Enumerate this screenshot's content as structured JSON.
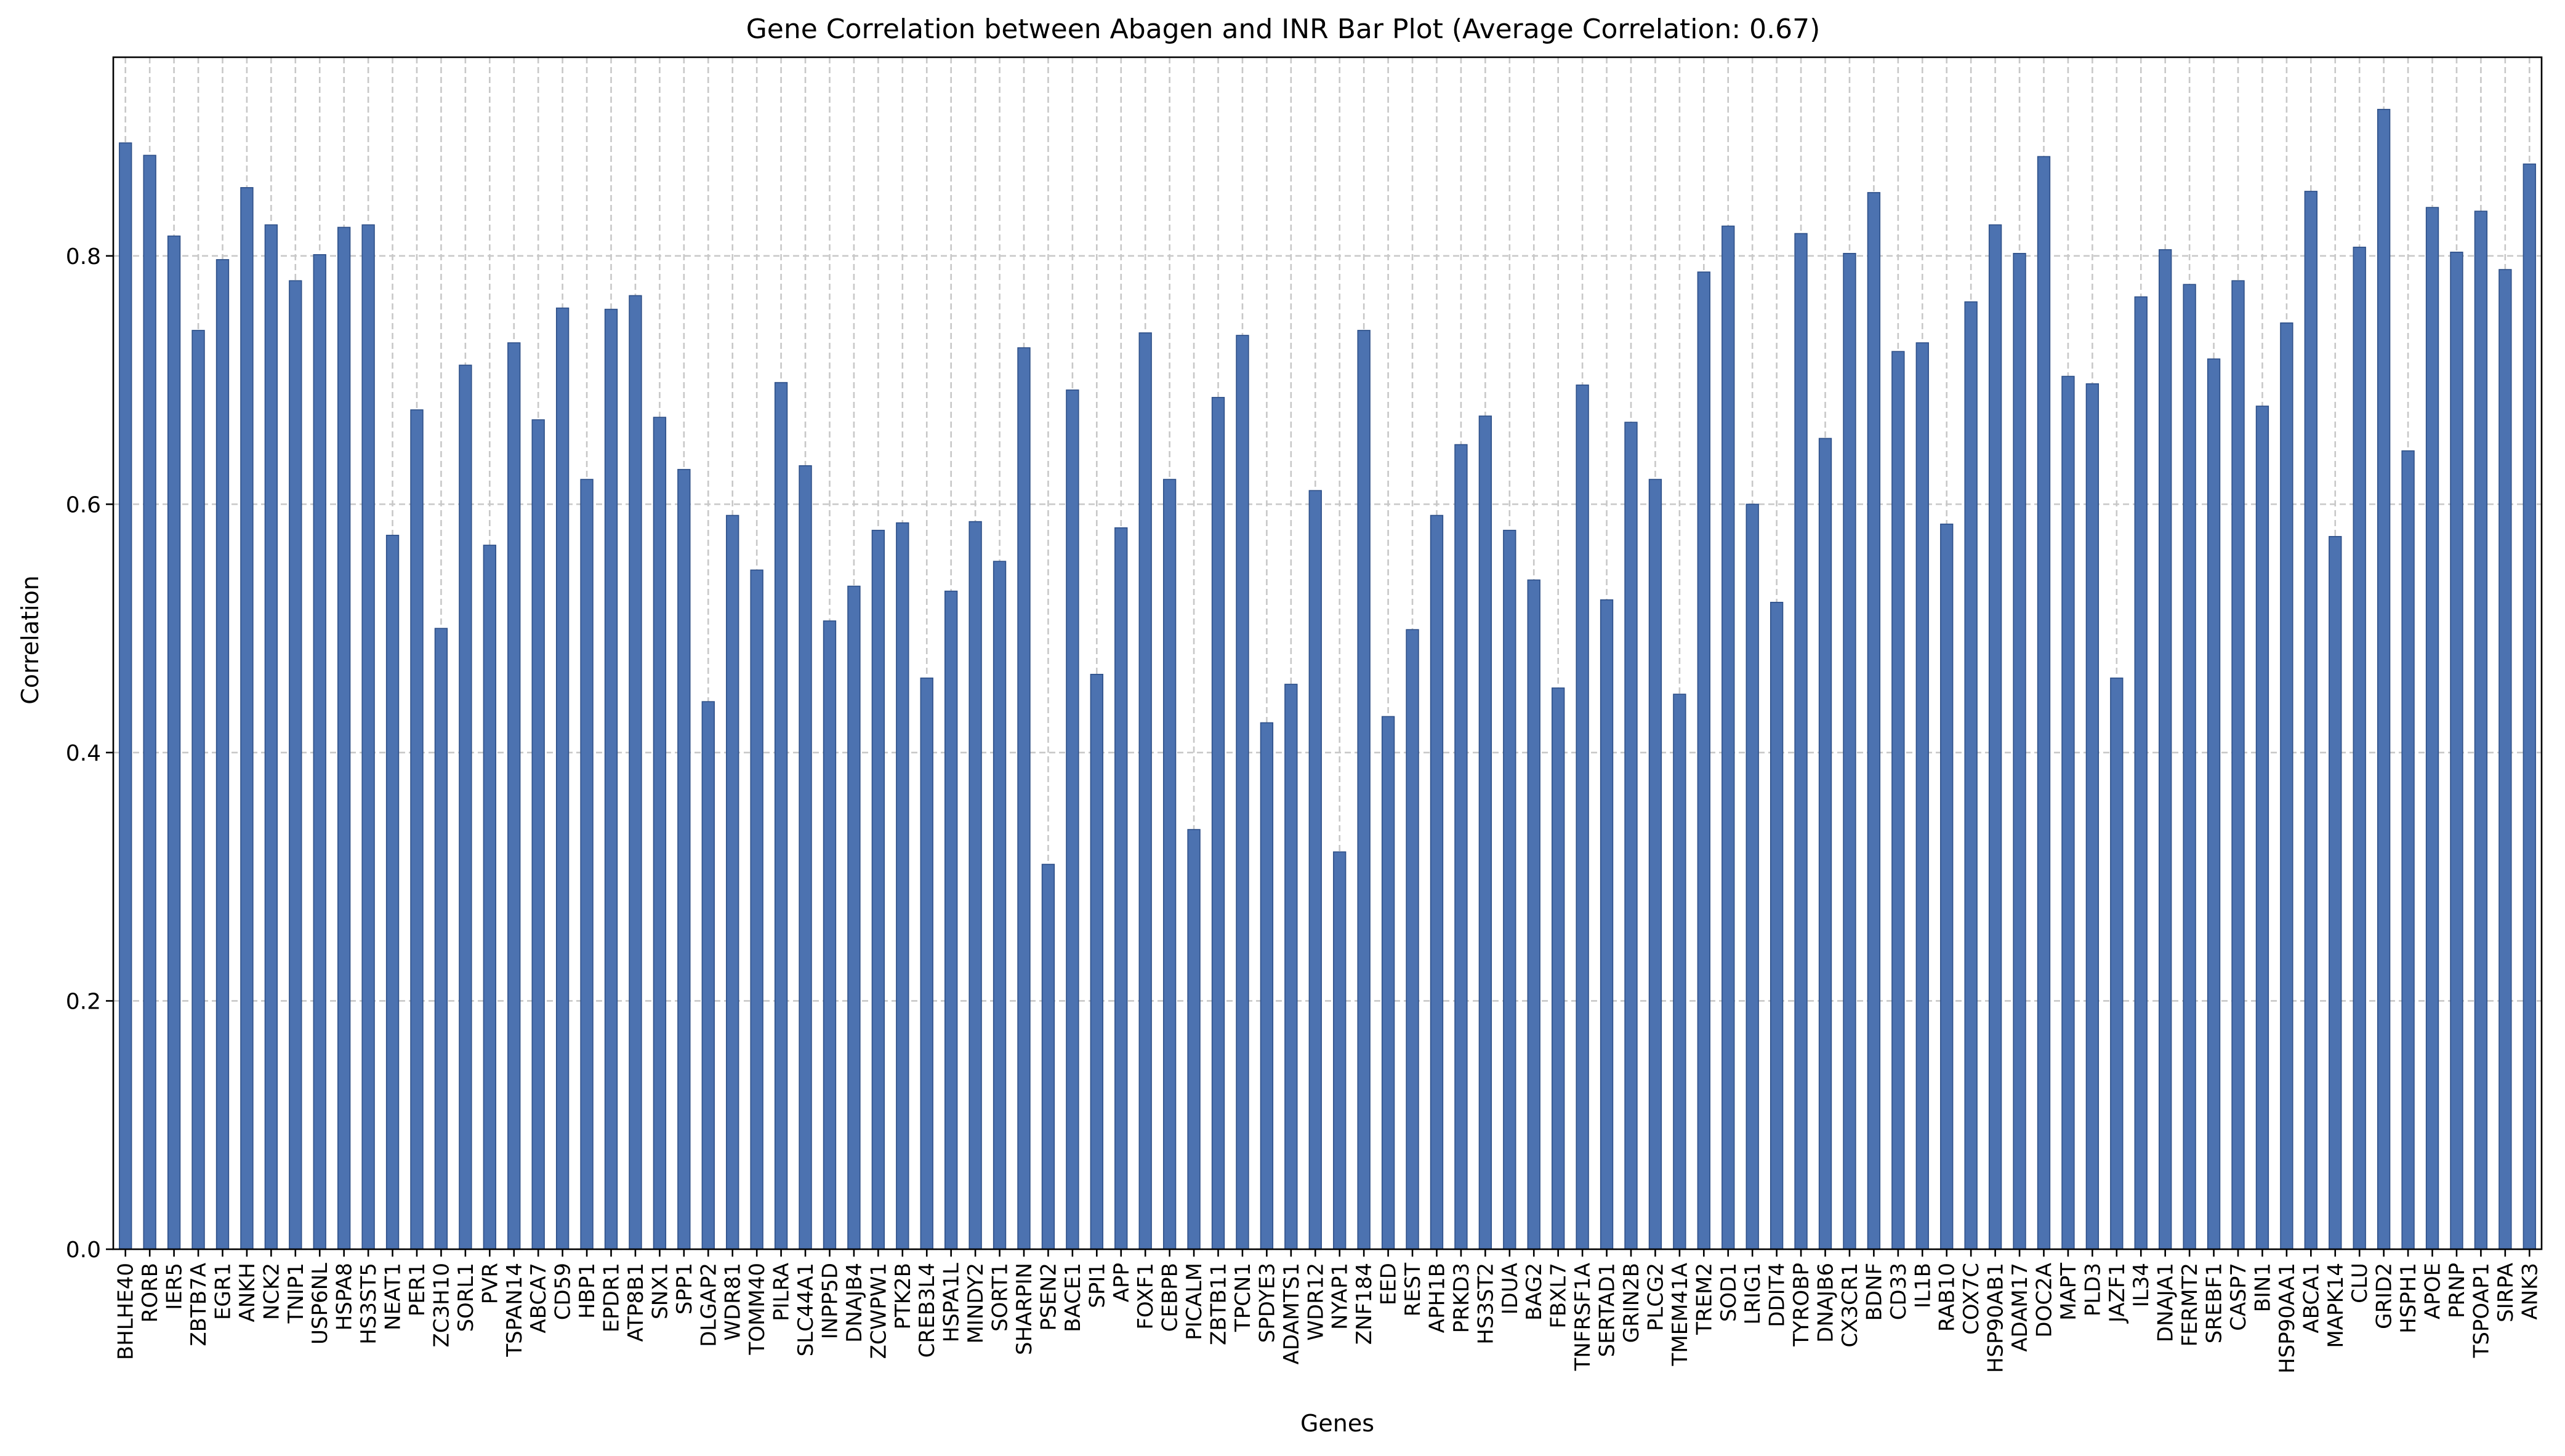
{
  "chart_data": {
    "type": "bar",
    "title": "Gene Correlation between Abagen and INR Bar Plot (Average Correlation: 0.67)",
    "xlabel": "Genes",
    "ylabel": "Correlation",
    "ylim": [
      0,
      0.96
    ],
    "yticks": [
      "0.0",
      "0.2",
      "0.4",
      "0.6",
      "0.8"
    ],
    "grid": true,
    "bar_color": "#4c72b0",
    "categories": [
      "BHLHE40",
      "RORB",
      "IER5",
      "ZBTB7A",
      "EGR1",
      "ANKH",
      "NCK2",
      "TNIP1",
      "USP6NL",
      "HSPA8",
      "HS3ST5",
      "NEAT1",
      "PER1",
      "ZC3H10",
      "SORL1",
      "PVR",
      "TSPAN14",
      "ABCA7",
      "CD59",
      "HBP1",
      "EPDR1",
      "ATP8B1",
      "SNX1",
      "SPP1",
      "DLGAP2",
      "WDR81",
      "TOMM40",
      "PILRA",
      "SLC44A1",
      "INPP5D",
      "DNAJB4",
      "ZCWPW1",
      "PTK2B",
      "CREB3L4",
      "HSPA1L",
      "MINDY2",
      "SORT1",
      "SHARPIN",
      "PSEN2",
      "BACE1",
      "SPI1",
      "APP",
      "FOXF1",
      "CEBPB",
      "PICALM",
      "ZBTB11",
      "TPCN1",
      "SPDYE3",
      "ADAMTS1",
      "WDR12",
      "NYAP1",
      "ZNF184",
      "EED",
      "REST",
      "APH1B",
      "PRKD3",
      "HS3ST2",
      "IDUA",
      "BAG2",
      "FBXL7",
      "TNFRSF1A",
      "SERTAD1",
      "GRIN2B",
      "PLCG2",
      "TMEM41A",
      "TREM2",
      "SOD1",
      "LRIG1",
      "DDIT4",
      "TYROBP",
      "DNAJB6",
      "CX3CR1",
      "BDNF",
      "CD33",
      "IL1B",
      "RAB10",
      "COX7C",
      "HSP90AB1",
      "ADAM17",
      "DOC2A",
      "MAPT",
      "PLD3",
      "JAZF1",
      "IL34",
      "DNAJA1",
      "FERMT2",
      "SREBF1",
      "CASP7",
      "BIN1",
      "HSP90AA1",
      "ABCA1",
      "MAPK14",
      "CLU",
      "GRID2",
      "HSPH1",
      "APOE",
      "PRNP",
      "TSPOAP1",
      "SIRPA",
      "ANK3"
    ],
    "values": [
      0.891,
      0.881,
      0.816,
      0.74,
      0.797,
      0.855,
      0.825,
      0.78,
      0.801,
      0.823,
      0.825,
      0.575,
      0.676,
      0.5,
      0.712,
      0.567,
      0.73,
      0.668,
      0.758,
      0.62,
      0.757,
      0.768,
      0.67,
      0.628,
      0.441,
      0.591,
      0.547,
      0.698,
      0.631,
      0.506,
      0.534,
      0.579,
      0.585,
      0.46,
      0.53,
      0.586,
      0.554,
      0.726,
      0.31,
      0.692,
      0.463,
      0.581,
      0.738,
      0.62,
      0.338,
      0.686,
      0.736,
      0.424,
      0.455,
      0.611,
      0.32,
      0.74,
      0.429,
      0.499,
      0.591,
      0.648,
      0.671,
      0.579,
      0.539,
      0.452,
      0.696,
      0.523,
      0.666,
      0.62,
      0.447,
      0.787,
      0.824,
      0.6,
      0.521,
      0.818,
      0.653,
      0.802,
      0.851,
      0.723,
      0.73,
      0.584,
      0.763,
      0.825,
      0.802,
      0.88,
      0.703,
      0.697,
      0.46,
      0.767,
      0.805,
      0.777,
      0.717,
      0.78,
      0.679,
      0.746,
      0.852,
      0.574,
      0.807,
      0.918,
      0.643,
      0.839,
      0.803,
      0.836,
      0.789,
      0.874
    ]
  }
}
